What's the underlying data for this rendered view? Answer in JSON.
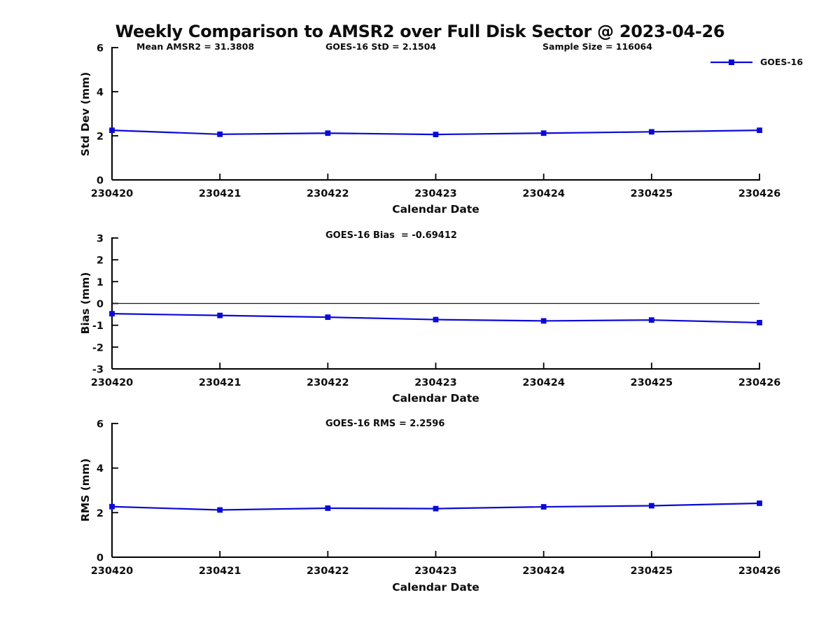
{
  "title": "Weekly Comparison to AMSR2 over Full Disk Sector @ 2023-04-26",
  "colors": {
    "series": "#0a0ad8",
    "axis": "#000000",
    "text": "#0d0d0d",
    "zero_line": "#1a1a1a",
    "background": "#ffffff"
  },
  "legend": {
    "label": "GOES-16",
    "position": "top-right",
    "boxed": false
  },
  "chart_data": [
    {
      "type": "line",
      "title": "",
      "annotations": [
        "Mean AMSR2 = 31.3808",
        "GOES-16 StD = 2.1504",
        "Sample Size = 116064"
      ],
      "xlabel": "Calendar Date",
      "ylabel": "Std Dev (mm)",
      "categories": [
        "230420",
        "230421",
        "230422",
        "230423",
        "230424",
        "230425",
        "230426"
      ],
      "series": [
        {
          "name": "GOES-16",
          "values": [
            2.25,
            2.07,
            2.12,
            2.06,
            2.12,
            2.18,
            2.25
          ]
        }
      ],
      "ylim": [
        0,
        6
      ],
      "yticks": [
        0,
        2,
        4,
        6
      ],
      "grid": false,
      "zero_line": false,
      "marker": "square"
    },
    {
      "type": "line",
      "title": "GOES-16 Bias  = -0.69412",
      "xlabel": "Calendar Date",
      "ylabel": "Bias (mm)",
      "categories": [
        "230420",
        "230421",
        "230422",
        "230423",
        "230424",
        "230425",
        "230426"
      ],
      "series": [
        {
          "name": "GOES-16",
          "values": [
            -0.47,
            -0.55,
            -0.63,
            -0.74,
            -0.8,
            -0.76,
            -0.88
          ]
        }
      ],
      "ylim": [
        -3,
        3
      ],
      "yticks": [
        3,
        2,
        1,
        0,
        -1,
        -2,
        -3
      ],
      "grid": false,
      "zero_line": true,
      "marker": "square"
    },
    {
      "type": "line",
      "title": "GOES-16 RMS = 2.2596",
      "xlabel": "Calendar Date",
      "ylabel": "RMS (mm)",
      "categories": [
        "230420",
        "230421",
        "230422",
        "230423",
        "230424",
        "230425",
        "230426"
      ],
      "series": [
        {
          "name": "GOES-16",
          "values": [
            2.27,
            2.12,
            2.2,
            2.18,
            2.26,
            2.31,
            2.42
          ]
        }
      ],
      "ylim": [
        0,
        6
      ],
      "yticks": [
        0,
        2,
        4,
        6
      ],
      "grid": false,
      "zero_line": false,
      "marker": "square"
    }
  ]
}
